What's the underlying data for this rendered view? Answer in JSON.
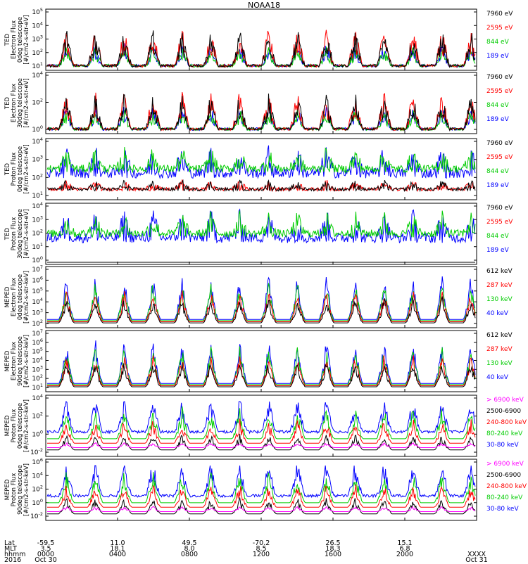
{
  "title": "NOAA18",
  "panels": [
    {
      "id": "ted-e-0",
      "ylabel": [
        "TED",
        "Electron Flux",
        "0deg telescope",
        "[#/cm2-s-str-eV]"
      ],
      "y_ticks": [
        "10^1",
        "10^2",
        "10^3",
        "10^4",
        "10^5"
      ],
      "ylim_exp": [
        1,
        5
      ],
      "channels": [
        {
          "label": "7960 eV",
          "color": "#000000"
        },
        {
          "label": "2595 eV",
          "color": "#ff0000"
        },
        {
          "label": "844 eV",
          "color": "#00cc00"
        },
        {
          "label": "189 eV",
          "color": "#0000ff"
        }
      ]
    },
    {
      "id": "ted-e-30",
      "ylabel": [
        "TED",
        "Electron Flux",
        "30deg telescope",
        "[#/cm2-s-str-eV]"
      ],
      "y_ticks": [
        "10^0",
        "10^2",
        "10^4"
      ],
      "ylim_exp": [
        0,
        5
      ],
      "channels": [
        {
          "label": "7960 eV",
          "color": "#000000"
        },
        {
          "label": "2595 eV",
          "color": "#ff0000"
        },
        {
          "label": "844 eV",
          "color": "#00cc00"
        },
        {
          "label": "189 eV",
          "color": "#0000ff"
        }
      ]
    },
    {
      "id": "ted-p-0",
      "ylabel": [
        "TED",
        "Proton Flux",
        "0deg telescope",
        "[#/cm2-s-str-eV]"
      ],
      "y_ticks": [
        "10^1",
        "10^2",
        "10^3",
        "10^4"
      ],
      "ylim_exp": [
        0.5,
        4.5
      ],
      "channels": [
        {
          "label": "7960 eV",
          "color": "#000000"
        },
        {
          "label": "2595 eV",
          "color": "#ff0000"
        },
        {
          "label": "844 eV",
          "color": "#00cc00"
        },
        {
          "label": "189 eV",
          "color": "#0000ff"
        }
      ]
    },
    {
      "id": "ted-p-30",
      "ylabel": [
        "TED",
        "Proton Flux",
        "30deg telescope",
        "[#/cm2-s-str-eV]"
      ],
      "y_ticks": [
        "10^0",
        "10^1",
        "10^2",
        "10^3",
        "10^4"
      ],
      "ylim_exp": [
        0,
        4.5
      ],
      "channels": [
        {
          "label": "7960 eV",
          "color": "#000000"
        },
        {
          "label": "2595 eV",
          "color": "#ff0000"
        },
        {
          "label": "844 eV",
          "color": "#00cc00"
        },
        {
          "label": "189 eV",
          "color": "#0000ff"
        }
      ]
    },
    {
      "id": "meped-e-0",
      "ylabel": [
        "MEPED",
        "Electron Flux",
        "0deg telescope",
        "[#/cm2-s-str-keV]"
      ],
      "y_ticks": [
        "10^2",
        "10^3",
        "10^4",
        "10^5",
        "10^6",
        "10^7"
      ],
      "ylim_exp": [
        2,
        7
      ],
      "channels": [
        {
          "label": "612 keV",
          "color": "#000000"
        },
        {
          "label": "287 keV",
          "color": "#ff0000"
        },
        {
          "label": "130 keV",
          "color": "#00cc00"
        },
        {
          "label": "40 keV",
          "color": "#0000ff"
        }
      ]
    },
    {
      "id": "meped-e-90",
      "ylabel": [
        "MEPED",
        "Electron Flux",
        "90deg telescope",
        "[#/cm2-s-str-keV]"
      ],
      "y_ticks": [
        "10^1",
        "10^2",
        "10^3",
        "10^4",
        "10^5",
        "10^6",
        "10^7"
      ],
      "ylim_exp": [
        1,
        7
      ],
      "channels": [
        {
          "label": "612 keV",
          "color": "#000000"
        },
        {
          "label": "287 keV",
          "color": "#ff0000"
        },
        {
          "label": "130 keV",
          "color": "#00cc00"
        },
        {
          "label": "40 keV",
          "color": "#0000ff"
        }
      ]
    },
    {
      "id": "meped-p-0",
      "ylabel": [
        "MEPED",
        "Proton Flux",
        "0deg telescope",
        "[#/cm2-s-str-keV]"
      ],
      "y_ticks": [
        "10^-2",
        "10^0",
        "10^2",
        "10^4"
      ],
      "ylim_exp": [
        -2.5,
        5
      ],
      "channels": [
        {
          "label": "> 6900 keV",
          "color": "#ff00ff"
        },
        {
          "label": "2500-6900",
          "color": "#000000"
        },
        {
          "label": "240-800 keV",
          "color": "#ff0000"
        },
        {
          "label": "80-240 keV",
          "color": "#00cc00"
        },
        {
          "label": "30-80 keV",
          "color": "#0000ff"
        }
      ]
    },
    {
      "id": "meped-p-90",
      "ylabel": [
        "MEPED",
        "Proton Flux",
        "90deg telescope",
        "[#/cm2-s-str-keV]"
      ],
      "y_ticks": [
        "10^-2",
        "10^0",
        "10^2",
        "10^4",
        "10^6"
      ],
      "ylim_exp": [
        -2.5,
        6
      ],
      "channels": [
        {
          "label": "> 6900 keV",
          "color": "#ff00ff"
        },
        {
          "label": "2500-6900",
          "color": "#000000"
        },
        {
          "label": "240-800 keV",
          "color": "#ff0000"
        },
        {
          "label": "80-240 keV",
          "color": "#00cc00"
        },
        {
          "label": "30-80 keV",
          "color": "#0000ff"
        }
      ]
    }
  ],
  "footer": {
    "row_labels": [
      "Lat",
      "MLT",
      "hhmm",
      "2016"
    ],
    "columns": [
      {
        "lat": "-59.5",
        "mlt": "3.5",
        "hhmm": "0000",
        "date": "Oct 30"
      },
      {
        "lat": "11.0",
        "mlt": "18.1",
        "hhmm": "0400",
        "date": ""
      },
      {
        "lat": "49.5",
        "mlt": "8.0",
        "hhmm": "0800",
        "date": ""
      },
      {
        "lat": "-70.2",
        "mlt": "8.5",
        "hhmm": "1200",
        "date": ""
      },
      {
        "lat": "26.5",
        "mlt": "18.3",
        "hhmm": "1600",
        "date": ""
      },
      {
        "lat": "15.1",
        "mlt": "6.8",
        "hhmm": "2000",
        "date": ""
      },
      {
        "lat": "",
        "mlt": "",
        "hhmm": "XXXX",
        "date": "Oct 31"
      }
    ]
  },
  "chart_data": {
    "type": "line",
    "title": "NOAA18",
    "xlabel": "hhmm",
    "x_ticks": [
      "0000",
      "0400",
      "0800",
      "1200",
      "1600",
      "2000",
      "XXXX"
    ],
    "x_range": [
      "2016 Oct 30 0000",
      "2016 Oct 31 0000"
    ],
    "y_scale": "log",
    "series": [
      {
        "name": "7960 eV"
      },
      {
        "name": "2595 eV"
      },
      {
        "name": "844 eV"
      },
      {
        "name": "189 eV"
      },
      {
        "name": "612 keV"
      },
      {
        "name": "287 keV"
      },
      {
        "name": "130 keV"
      },
      {
        "name": "40 keV"
      },
      {
        "name": "> 6900 keV"
      },
      {
        "name": "2500-6900"
      },
      {
        "name": "240-800 keV"
      },
      {
        "name": "80-240 keV"
      },
      {
        "name": "30-80 keV"
      }
    ]
  }
}
